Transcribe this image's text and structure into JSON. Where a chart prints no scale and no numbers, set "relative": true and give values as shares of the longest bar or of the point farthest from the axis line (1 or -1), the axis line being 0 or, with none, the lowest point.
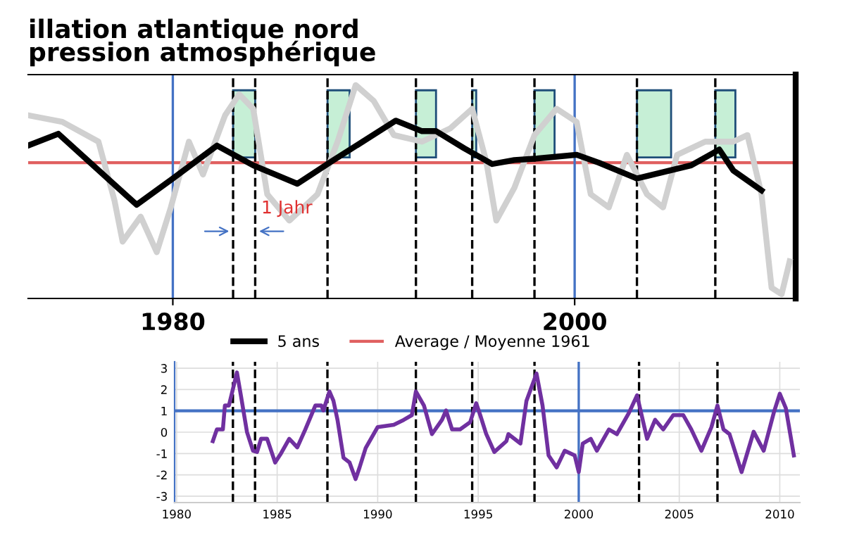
{
  "chart_data": [
    {
      "type": "line",
      "title": "illation atlantique nord",
      "subtitle": "pression atmosphérique",
      "relative": true,
      "legend": "bottom",
      "tick_labels": "x",
      "xlim": [
        1972.8,
        2011.0
      ],
      "xticks": [
        1980,
        2000
      ],
      "series": [
        {
          "color": "#d0d0d0",
          "x": [
            1972.8,
            1974.5,
            1976.3,
            1977.1,
            1977.5,
            1978.4,
            1979.2,
            1979.9,
            1980.8,
            1981.5,
            1982.6,
            1983.3,
            1984.0,
            1984.7,
            1985.8,
            1987.2,
            1988.2,
            1989.1,
            1990.0,
            1991.0,
            1992.4,
            1993.8,
            1994.9,
            1995.6,
            1996.1,
            1997.0,
            1998.0,
            1999.1,
            2000.1,
            2000.8,
            2001.7,
            2002.6,
            2003.6,
            2004.4,
            2005.1,
            2006.5,
            2007.9,
            2008.6,
            2009.3,
            2009.8,
            2010.3,
            2010.7
          ],
          "values": [
            0.36,
            0.31,
            0.16,
            -0.29,
            -0.6,
            -0.41,
            -0.68,
            -0.34,
            0.16,
            -0.09,
            0.36,
            0.52,
            0.41,
            -0.24,
            -0.44,
            -0.24,
            0.16,
            0.59,
            0.47,
            0.21,
            0.16,
            0.26,
            0.41,
            0.01,
            -0.44,
            -0.19,
            0.21,
            0.41,
            0.31,
            -0.24,
            -0.34,
            0.06,
            -0.24,
            -0.34,
            0.06,
            0.16,
            0.16,
            0.21,
            -0.24,
            -0.95,
            -1,
            -0.75
          ]
        },
        {
          "name": "5 ans",
          "color": "#000000",
          "x": [
            1972.8,
            1974.3,
            1978.2,
            1980.0,
            1982.2,
            1984.0,
            1986.2,
            1987.9,
            1991.1,
            1992.4,
            1993.1,
            1994.5,
            1995.9,
            1997.0,
            1998.0,
            2000.1,
            2001.2,
            2003.1,
            2005.8,
            2007.2,
            2007.9,
            2009.3
          ],
          "values": [
            0.13,
            0.22,
            -0.32,
            -0.12,
            0.13,
            -0.02,
            -0.16,
            0.01,
            0.32,
            0.24,
            0.24,
            0.11,
            -0.01,
            0.02,
            0.03,
            0.06,
            0,
            -0.12,
            -0.02,
            0.1,
            -0.06,
            -0.21
          ]
        }
      ],
      "ref_lines": [
        {
          "axis": "y",
          "value": 0,
          "label": "Average / Moyenne 1961",
          "color": "#e06060",
          "line_style": "solid"
        },
        {
          "axis": "x",
          "value": 1980,
          "color": "#4472c4",
          "line_style": "solid"
        },
        {
          "axis": "x",
          "value": 2000,
          "color": "#4472c4",
          "line_style": "solid"
        },
        {
          "axis": "x",
          "value": 1983.0,
          "color": "#000000",
          "line_style": "dashed"
        },
        {
          "axis": "x",
          "value": 1984.1,
          "color": "#000000",
          "line_style": "dashed"
        },
        {
          "axis": "x",
          "value": 1987.7,
          "color": "#000000",
          "line_style": "dashed"
        },
        {
          "axis": "x",
          "value": 1992.1,
          "color": "#000000",
          "line_style": "dashed"
        },
        {
          "axis": "x",
          "value": 1994.9,
          "color": "#000000",
          "line_style": "dashed"
        },
        {
          "axis": "x",
          "value": 1998.0,
          "color": "#000000",
          "line_style": "dashed"
        },
        {
          "axis": "x",
          "value": 2003.1,
          "color": "#000000",
          "line_style": "dashed"
        },
        {
          "axis": "x",
          "value": 2007.0,
          "color": "#000000",
          "line_style": "dashed"
        }
      ],
      "bands": [
        {
          "axis": "x",
          "from": 1983.0,
          "to": 1984.1,
          "color": "#c6efd6"
        },
        {
          "axis": "x",
          "from": 1987.7,
          "to": 1988.8,
          "color": "#c6efd6"
        },
        {
          "axis": "x",
          "from": 1992.1,
          "to": 1993.1,
          "color": "#c6efd6"
        },
        {
          "axis": "x",
          "from": 1994.9,
          "to": 1995.1,
          "color": "#c6efd6"
        },
        {
          "axis": "x",
          "from": 1998.0,
          "to": 1999.0,
          "color": "#c6efd6"
        },
        {
          "axis": "x",
          "from": 2003.1,
          "to": 2004.8,
          "color": "#c6efd6"
        },
        {
          "axis": "x",
          "from": 2007.0,
          "to": 2008.0,
          "color": "#c6efd6"
        }
      ],
      "annotations": [
        "1 Jahr"
      ]
    },
    {
      "type": "line",
      "grid": true,
      "xlim": [
        1979.9,
        2011.0
      ],
      "xticks": [
        1980,
        1985,
        1990,
        1995,
        2000,
        2005,
        2010
      ],
      "ylim": [
        -3.3,
        3.3
      ],
      "yticks": [
        -3,
        -2,
        -1,
        0,
        1,
        2,
        3
      ],
      "series": [
        {
          "color": "#7030a0",
          "x": [
            1981.8,
            1982.0,
            1982.3,
            1982.4,
            1982.6,
            1983.0,
            1983.2,
            1983.5,
            1983.8,
            1984.0,
            1984.2,
            1984.5,
            1984.9,
            1985.2,
            1985.6,
            1986.0,
            1986.4,
            1986.9,
            1987.2,
            1987.3,
            1987.6,
            1987.8,
            1988.0,
            1988.3,
            1988.6,
            1988.9,
            1989.1,
            1989.4,
            1990.0,
            1990.8,
            1991.3,
            1991.7,
            1991.9,
            1992.3,
            1992.7,
            1993.2,
            1993.4,
            1993.7,
            1994.1,
            1994.6,
            1994.9,
            1995.1,
            1995.4,
            1995.8,
            1996.4,
            1996.5,
            1997.1,
            1997.4,
            1997.9,
            1998.2,
            1998.5,
            1998.9,
            1999.3,
            1999.8,
            2000.0,
            2000.2,
            2000.6,
            2000.9,
            2001.5,
            2001.9,
            2002.5,
            2002.9,
            2003.4,
            2003.8,
            2004.2,
            2004.7,
            2005.2,
            2005.6,
            2006.1,
            2006.6,
            2006.9,
            2007.2,
            2007.5,
            2008.1,
            2008.7,
            2009.2,
            2009.7,
            2010.0,
            2010.3,
            2010.7
          ],
          "values": [
            -0.42,
            0.13,
            0.13,
            1.25,
            1.25,
            2.8,
            1.7,
            0.0,
            -0.87,
            -0.93,
            -0.31,
            -0.31,
            -1.42,
            -0.98,
            -0.31,
            -0.71,
            0.13,
            1.25,
            1.25,
            1.02,
            1.91,
            1.47,
            0.58,
            -1.2,
            -1.42,
            -2.2,
            -1.65,
            -0.75,
            0.24,
            0.35,
            0.58,
            0.8,
            1.91,
            1.25,
            -0.09,
            0.58,
            1.02,
            0.13,
            0.13,
            0.47,
            1.36,
            0.8,
            -0.09,
            -0.93,
            -0.42,
            -0.09,
            -0.53,
            1.47,
            2.75,
            1.25,
            -1.09,
            -1.65,
            -0.87,
            -1.09,
            -1.87,
            -0.53,
            -0.31,
            -0.87,
            0.13,
            -0.09,
            0.91,
            1.73,
            -0.31,
            0.58,
            0.13,
            0.8,
            0.8,
            0.13,
            -0.87,
            0.24,
            1.25,
            0.13,
            -0.09,
            -1.87,
            0.02,
            -0.87,
            0.91,
            1.8,
            1.13,
            -1.09
          ]
        }
      ],
      "ref_lines": [
        {
          "axis": "y",
          "value": 1,
          "color": "#4472c4",
          "line_style": "solid"
        },
        {
          "axis": "x",
          "value": 2000,
          "color": "#4472c4",
          "line_style": "solid"
        },
        {
          "axis": "x",
          "value": 1982.8,
          "color": "#000000",
          "line_style": "dashed"
        },
        {
          "axis": "x",
          "value": 1983.9,
          "color": "#000000",
          "line_style": "dashed"
        },
        {
          "axis": "x",
          "value": 1987.5,
          "color": "#000000",
          "line_style": "dashed"
        },
        {
          "axis": "x",
          "value": 1991.9,
          "color": "#000000",
          "line_style": "dashed"
        },
        {
          "axis": "x",
          "value": 1994.7,
          "color": "#000000",
          "line_style": "dashed"
        },
        {
          "axis": "x",
          "value": 1997.8,
          "color": "#000000",
          "line_style": "dashed"
        },
        {
          "axis": "x",
          "value": 2003.0,
          "color": "#000000",
          "line_style": "dashed"
        },
        {
          "axis": "x",
          "value": 2006.9,
          "color": "#000000",
          "line_style": "dashed"
        }
      ]
    }
  ]
}
